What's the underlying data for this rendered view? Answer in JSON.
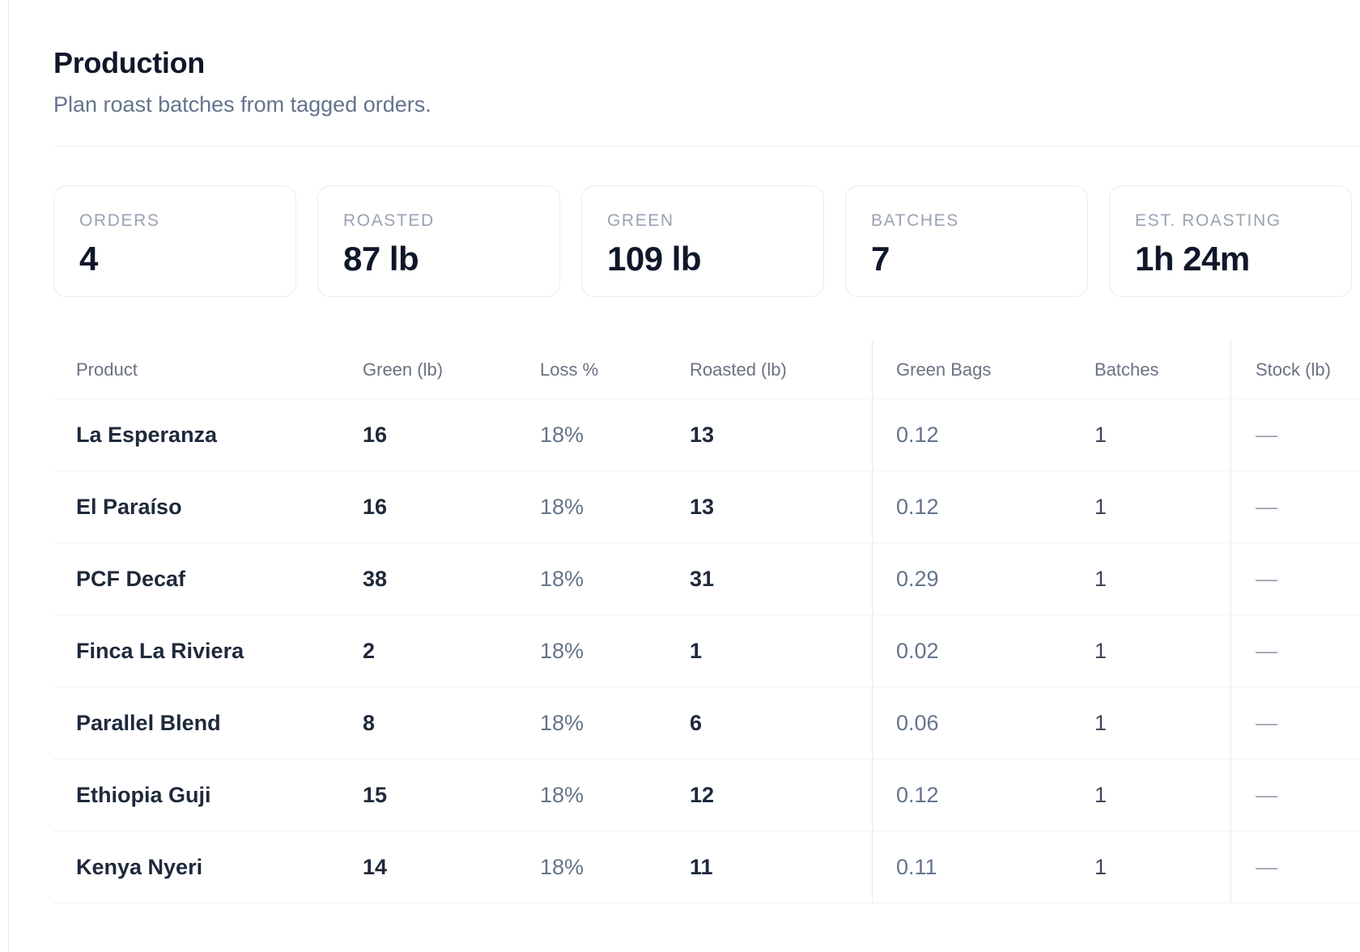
{
  "page": {
    "title": "Production",
    "subtitle": "Plan roast batches from tagged orders."
  },
  "stats": [
    {
      "label": "ORDERS",
      "value": "4"
    },
    {
      "label": "ROASTED",
      "value": "87 lb"
    },
    {
      "label": "GREEN",
      "value": "109 lb"
    },
    {
      "label": "BATCHES",
      "value": "7"
    },
    {
      "label": "EST. ROASTING",
      "value": "1h 24m"
    }
  ],
  "table": {
    "columns": [
      "Product",
      "Green (lb)",
      "Loss %",
      "Roasted (lb)",
      "Green Bags",
      "Batches",
      "Stock (lb)"
    ],
    "rows": [
      {
        "product": "La Esperanza",
        "green_lb": "16",
        "loss_pct": "18%",
        "roasted_lb": "13",
        "green_bags": "0.12",
        "batches": "1",
        "stock_lb": "—"
      },
      {
        "product": "El Paraíso",
        "green_lb": "16",
        "loss_pct": "18%",
        "roasted_lb": "13",
        "green_bags": "0.12",
        "batches": "1",
        "stock_lb": "—"
      },
      {
        "product": "PCF Decaf",
        "green_lb": "38",
        "loss_pct": "18%",
        "roasted_lb": "31",
        "green_bags": "0.29",
        "batches": "1",
        "stock_lb": "—"
      },
      {
        "product": "Finca La Riviera",
        "green_lb": "2",
        "loss_pct": "18%",
        "roasted_lb": "1",
        "green_bags": "0.02",
        "batches": "1",
        "stock_lb": "—"
      },
      {
        "product": "Parallel Blend",
        "green_lb": "8",
        "loss_pct": "18%",
        "roasted_lb": "6",
        "green_bags": "0.06",
        "batches": "1",
        "stock_lb": "—"
      },
      {
        "product": "Ethiopia Guji",
        "green_lb": "15",
        "loss_pct": "18%",
        "roasted_lb": "12",
        "green_bags": "0.12",
        "batches": "1",
        "stock_lb": "—"
      },
      {
        "product": "Kenya Nyeri",
        "green_lb": "14",
        "loss_pct": "18%",
        "roasted_lb": "11",
        "green_bags": "0.11",
        "batches": "1",
        "stock_lb": "—"
      }
    ]
  },
  "colors": {
    "title": "#0f172a",
    "muted_text": "#64748b",
    "stat_label": "#9aa3b2",
    "dark_text": "#1e293b",
    "divider": "#eef1f4",
    "card_border": "#e9ecf0"
  }
}
